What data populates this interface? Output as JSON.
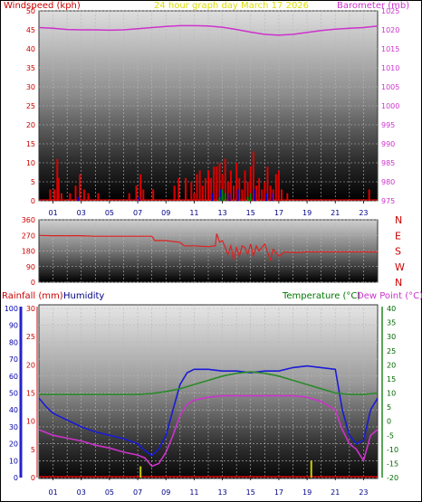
{
  "header": {
    "left_title": "Windspeed (kph)",
    "center_title": "24 hour graph day   March 17 2026",
    "right_title": "Barometer (mb)"
  },
  "bottom_header": {
    "rainfall": "Rainfall (mm)",
    "humidity": "Humidity",
    "temperature": "Temperature (°C)",
    "dewpoint": "Dew Point (°C)"
  },
  "colors": {
    "windspeed": "#dd0000",
    "gust": "#0000cc",
    "wind_green": "#008800",
    "barometer": "#cc33cc",
    "direction": "#dd2222",
    "humidity": "#1a1ad8",
    "temperature": "#2a8a2a",
    "dewpoint": "#cc33cc",
    "rain_axis": "#2222cc",
    "rain_bar": "#cccc00",
    "text_red": "#cc0000",
    "text_yellow": "#dddd00",
    "text_magenta": "#cc33cc",
    "text_green": "#007700",
    "text_navy": "#000088"
  },
  "chart_data": [
    {
      "type": "line",
      "title": "24 hour graph day   March 17 2026",
      "x_ticks": [
        "01",
        "03",
        "05",
        "07",
        "09",
        "11",
        "13",
        "15",
        "17",
        "19",
        "21",
        "23"
      ],
      "xlim": [
        0,
        24
      ],
      "y_left": {
        "label": "Windspeed (kph)",
        "ticks": [
          0,
          5,
          10,
          15,
          20,
          25,
          30,
          35,
          40,
          45,
          50
        ],
        "ylim": [
          0,
          50
        ]
      },
      "y_right": {
        "label": "Barometer (mb)",
        "ticks": [
          975,
          980,
          985,
          990,
          995,
          1000,
          1005,
          1010,
          1015,
          1020,
          1025
        ],
        "ylim": [
          975,
          1025
        ]
      },
      "series": [
        {
          "name": "Windspeed (kph)",
          "kind": "bars",
          "x": [
            0.8,
            1.1,
            1.3,
            1.4,
            1.6,
            2.2,
            2.6,
            2.9,
            3.2,
            3.5,
            4.2,
            6.4,
            6.9,
            7.2,
            7.4,
            8.1,
            9.6,
            9.9,
            10.4,
            10.8,
            11.0,
            11.2,
            11.4,
            11.6,
            11.8,
            12.0,
            12.2,
            12.4,
            12.6,
            12.8,
            13.0,
            13.2,
            13.4,
            13.6,
            13.8,
            14.0,
            14.2,
            14.4,
            14.6,
            14.8,
            15.0,
            15.2,
            15.4,
            15.6,
            15.8,
            16.0,
            16.2,
            16.4,
            16.6,
            16.8,
            17.0,
            17.2,
            17.6,
            23.4
          ],
          "values": [
            3,
            3,
            11,
            6,
            2,
            2,
            4,
            7,
            3,
            2,
            2,
            2,
            4,
            7,
            3,
            3,
            4,
            6,
            6,
            5,
            2,
            7,
            8,
            4,
            6,
            8,
            6,
            9,
            9,
            10,
            7,
            11,
            5,
            8,
            4,
            10,
            6,
            3,
            8,
            5,
            9,
            13,
            4,
            6,
            3,
            5,
            9,
            4,
            3,
            7,
            8,
            3,
            2,
            3
          ]
        },
        {
          "name": "Gust",
          "kind": "bars",
          "x": [
            2.8,
            7.1,
            12.3,
            12.9,
            13.5,
            14.1,
            15.3,
            16.1,
            16.5
          ],
          "values": [
            1,
            1,
            2,
            3,
            2,
            3,
            3,
            2,
            2
          ]
        },
        {
          "name": "Wind (green)",
          "kind": "bars",
          "x": [
            12.8,
            13.0,
            13.2,
            14.8,
            15.0
          ],
          "values": [
            1,
            3,
            2,
            1,
            2
          ]
        },
        {
          "name": "Barometer (mb)",
          "axis": "right",
          "x": [
            0,
            1,
            2,
            3,
            4,
            5,
            6,
            7,
            8,
            9,
            10,
            11,
            12,
            13,
            14,
            15,
            16,
            17,
            18,
            19,
            20,
            21,
            22,
            23,
            24
          ],
          "values": [
            1020.6,
            1020.4,
            1020.1,
            1020.0,
            1020.0,
            1019.9,
            1020.0,
            1020.3,
            1020.6,
            1020.9,
            1021.1,
            1021.1,
            1021.0,
            1020.7,
            1020.1,
            1019.4,
            1018.8,
            1018.6,
            1018.8,
            1019.3,
            1019.8,
            1020.2,
            1020.4,
            1020.6,
            1021.0
          ]
        }
      ]
    },
    {
      "type": "line",
      "y_ticks": [
        0,
        90,
        180,
        270,
        360
      ],
      "ylim": [
        0,
        360
      ],
      "y_right_labels": [
        "N",
        "W",
        "S",
        "E",
        "N"
      ],
      "series": [
        {
          "name": "Wind direction",
          "x": [
            0,
            1,
            2,
            3,
            4,
            5,
            6,
            7,
            8,
            8.2,
            9,
            10,
            10.3,
            11,
            12,
            12.5,
            12.6,
            12.8,
            13.0,
            13.2,
            13.4,
            13.6,
            13.8,
            14.0,
            14.2,
            14.4,
            14.6,
            14.8,
            15.0,
            15.2,
            15.4,
            15.6,
            16.0,
            16.4,
            16.6,
            17.0,
            17.4,
            18,
            19,
            20,
            21,
            22,
            23,
            24
          ],
          "values": [
            270,
            268,
            268,
            268,
            265,
            265,
            265,
            265,
            265,
            240,
            240,
            230,
            210,
            210,
            205,
            210,
            280,
            230,
            240,
            200,
            160,
            210,
            130,
            200,
            150,
            210,
            200,
            160,
            220,
            150,
            210,
            180,
            220,
            130,
            190,
            150,
            175,
            170,
            175,
            175,
            175,
            175,
            175,
            175
          ]
        }
      ]
    },
    {
      "type": "line",
      "x_ticks": [
        "01",
        "03",
        "05",
        "07",
        "09",
        "11",
        "13",
        "15",
        "17",
        "19",
        "21",
        "23"
      ],
      "xlim": [
        0,
        24
      ],
      "y_left_outer": {
        "label": "Humidity",
        "ticks": [
          0,
          10,
          20,
          30,
          40,
          50,
          60,
          70,
          80,
          90,
          100
        ],
        "ylim": [
          0,
          100
        ]
      },
      "y_left_inner": {
        "label": "Rainfall (mm)",
        "ticks": [
          0,
          5,
          10,
          15,
          20,
          25,
          30
        ],
        "ylim": [
          0,
          30
        ]
      },
      "y_right": {
        "label": "Temperature (°C)",
        "ticks": [
          -20,
          -15,
          -10,
          -5,
          0,
          5,
          10,
          15,
          20,
          25,
          30,
          35,
          40
        ],
        "ylim": [
          -20,
          40
        ]
      },
      "series": [
        {
          "name": "Humidity",
          "axis": "left_outer",
          "x": [
            0,
            0.5,
            1,
            1.5,
            2,
            3,
            4,
            5,
            6,
            7,
            7.5,
            8,
            8.5,
            9,
            9.5,
            10,
            10.5,
            11,
            12,
            13,
            14,
            15,
            16,
            17,
            18,
            19,
            20,
            21,
            21.5,
            22,
            22.5,
            23,
            23.5,
            24
          ],
          "values": [
            47,
            42,
            38,
            36,
            34,
            30,
            27,
            25,
            23,
            20,
            16,
            13,
            17,
            25,
            40,
            55,
            62,
            64,
            64,
            63,
            63,
            62,
            63,
            63,
            65,
            66,
            65,
            64,
            40,
            25,
            20,
            22,
            40,
            47
          ]
        },
        {
          "name": "Temperature (°C)",
          "axis": "right",
          "x": [
            0,
            1,
            2,
            3,
            4,
            5,
            6,
            7,
            8,
            9,
            10,
            11,
            12,
            13,
            14,
            15,
            16,
            17,
            18,
            19,
            20,
            21,
            22,
            23,
            24
          ],
          "values": [
            9.5,
            9.5,
            9.5,
            9.5,
            9.5,
            9.5,
            9.5,
            9.5,
            9.8,
            10.5,
            11.5,
            13,
            14.5,
            16,
            17,
            17.5,
            17,
            16,
            14.5,
            13,
            11.5,
            10,
            9.5,
            9.5,
            10
          ]
        },
        {
          "name": "Dew Point (°C)",
          "axis": "right",
          "x": [
            0,
            0.5,
            1,
            2,
            3,
            4,
            5,
            6,
            7,
            7.5,
            8,
            8.5,
            9,
            9.5,
            10,
            10.5,
            11,
            12,
            13,
            14,
            15,
            16,
            17,
            18,
            19,
            20,
            21,
            21.5,
            22,
            22.5,
            23,
            23.5,
            24
          ],
          "values": [
            -3,
            -4,
            -5,
            -6,
            -7,
            -8.5,
            -9.5,
            -11,
            -12,
            -13,
            -16,
            -15,
            -11,
            -5,
            2,
            6,
            7.5,
            8.5,
            9,
            9,
            9,
            9,
            9,
            9,
            8.5,
            7,
            4,
            -3,
            -8,
            -10,
            -14,
            -5,
            -3
          ]
        },
        {
          "name": "Rainfall (mm)",
          "axis": "left_inner",
          "kind": "bars",
          "x": [
            7.2,
            19.3
          ],
          "values": [
            2,
            3
          ]
        }
      ]
    }
  ]
}
